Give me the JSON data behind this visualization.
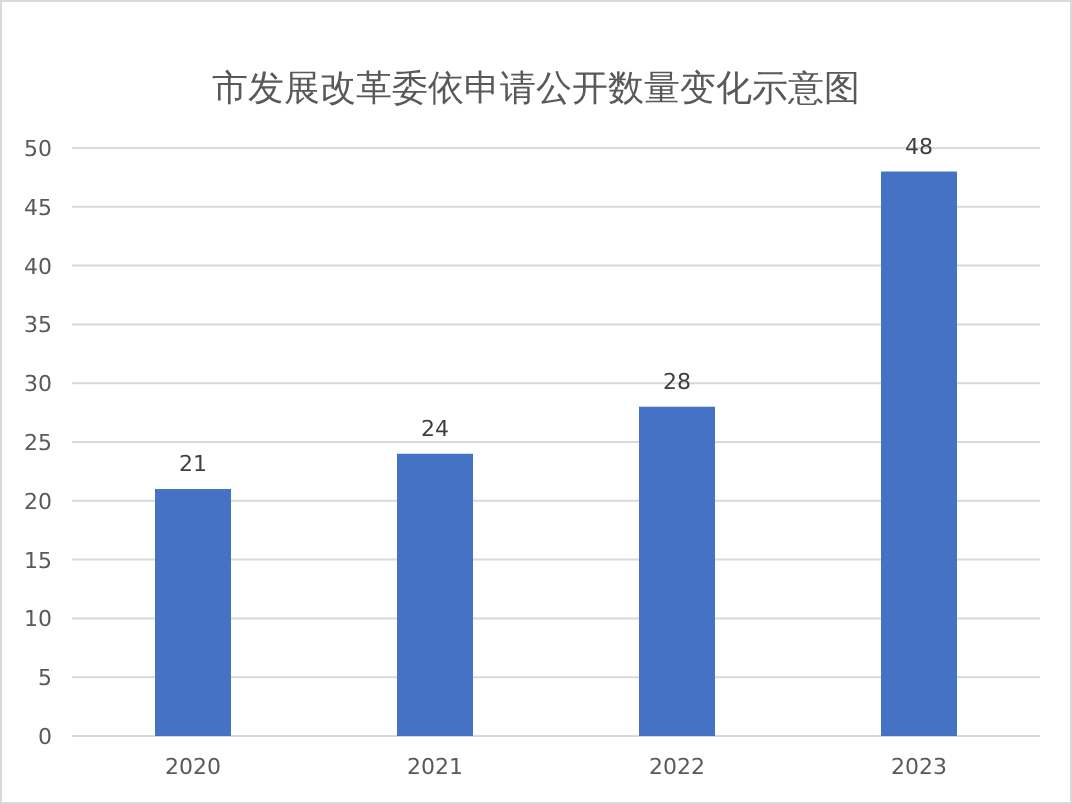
{
  "chart_data": {
    "type": "bar",
    "title": "市发展改革委依申请公开数量变化示意图",
    "categories": [
      "2020",
      "2021",
      "2022",
      "2023"
    ],
    "values": [
      21,
      24,
      28,
      48
    ],
    "color": "#4472c4",
    "ylim": [
      0,
      50
    ],
    "yticks": [
      0,
      5,
      10,
      15,
      20,
      25,
      30,
      35,
      40,
      45,
      50
    ],
    "grid": "y",
    "data_labels": true
  }
}
